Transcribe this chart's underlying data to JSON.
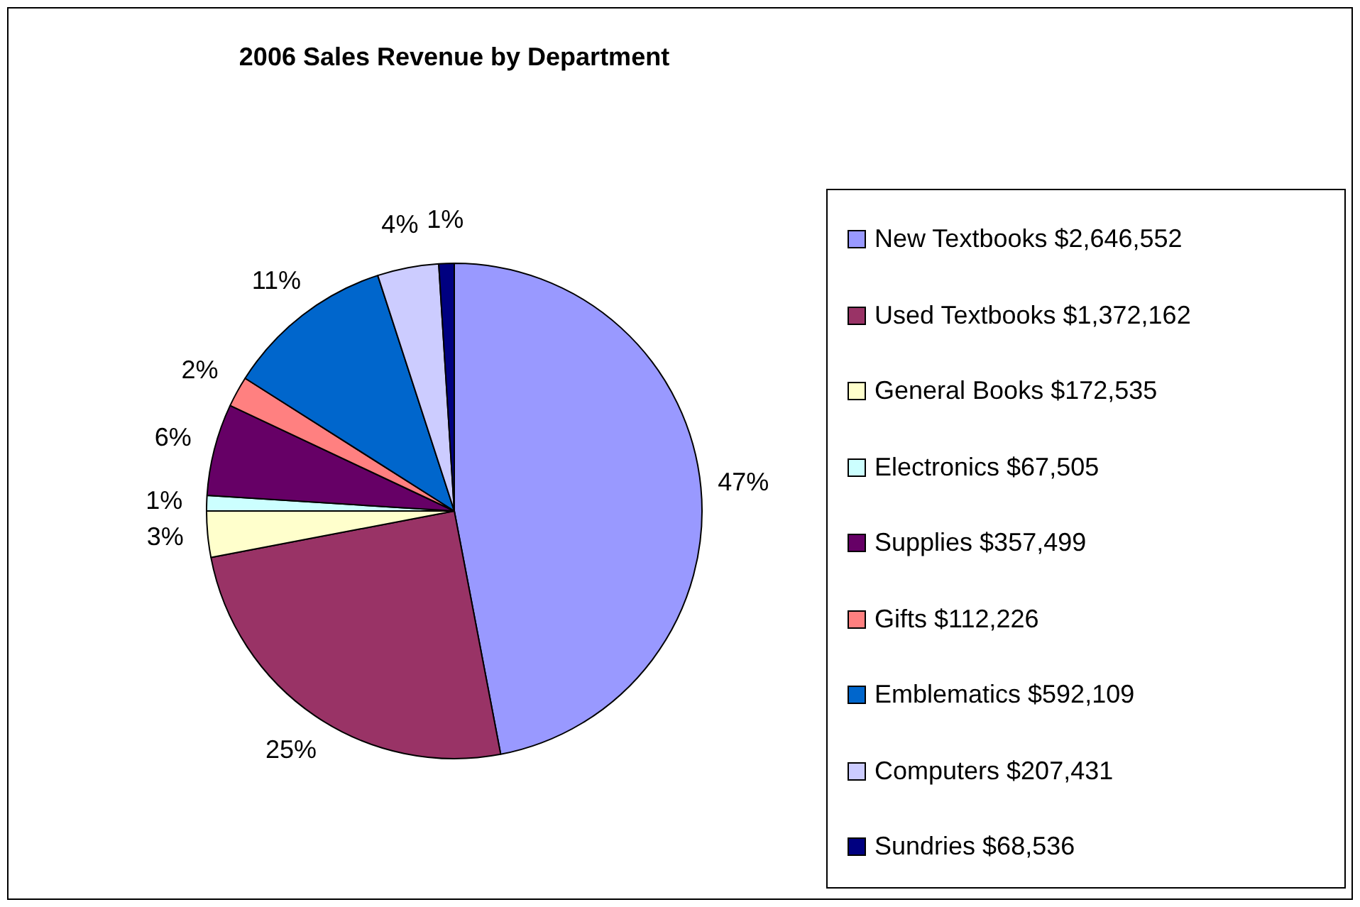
{
  "chart_data": {
    "type": "pie",
    "title": "2006 Sales Revenue by Department",
    "categories": [
      "New Textbooks $2,646,552",
      "Used Textbooks $1,372,162",
      "General Books $172,535",
      "Electronics $67,505",
      "Supplies $357,499",
      "Gifts $112,226",
      "Emblematics $592,109",
      "Computers $207,431",
      "Sundries $68,536"
    ],
    "values": [
      47,
      25,
      3,
      1,
      6,
      2,
      11,
      4,
      1
    ],
    "value_labels": [
      "47%",
      "25%",
      "3%",
      "1%",
      "6%",
      "2%",
      "11%",
      "4%",
      "1%"
    ],
    "colors": [
      "#9999ff",
      "#993366",
      "#ffffcc",
      "#ccffff",
      "#660066",
      "#ff8080",
      "#0066cc",
      "#ccccff",
      "#000080"
    ],
    "legend": "right"
  }
}
